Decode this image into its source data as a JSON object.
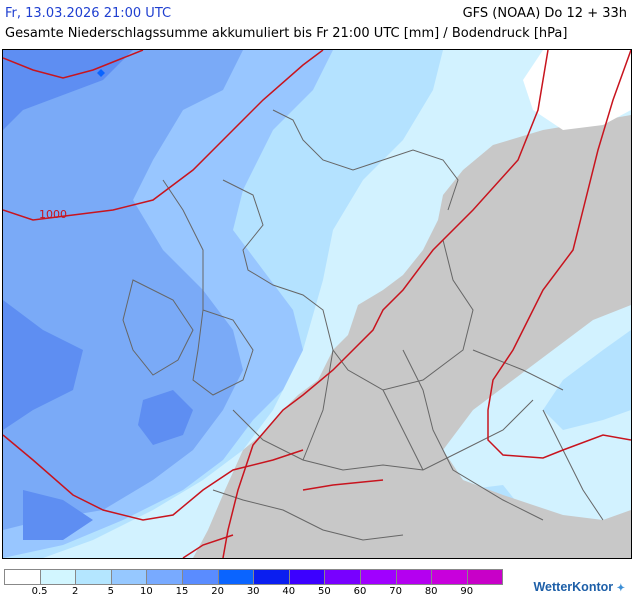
{
  "header": {
    "valid_time": "Fr, 13.03.2026 21:00 UTC",
    "model_run": "GFS (NOAA) Do 12 + 33h",
    "subtitle": "Gesamte Niederschlagssumme akkumuliert bis Fr 21:00 UTC [mm] / Bodendruck [hPa]"
  },
  "map": {
    "isobar_label": "1000",
    "isobar_color": "#c8141e",
    "no_precip_color": "#c8c8c8",
    "border_color": "#555555"
  },
  "legend": {
    "colors": [
      "#ffffff",
      "#d2f6ff",
      "#b4e6ff",
      "#96c8ff",
      "#78aaff",
      "#5a8cff",
      "#0a64ff",
      "#0a1ef0",
      "#3c00ff",
      "#7800ff",
      "#a000ff",
      "#b400f0",
      "#c800dc",
      "#c800c8"
    ],
    "labels": [
      "0.5",
      "2",
      "5",
      "10",
      "15",
      "20",
      "30",
      "40",
      "50",
      "60",
      "70",
      "80",
      "90"
    ]
  },
  "brand": {
    "name": "WetterKontor",
    "mark": "✦"
  }
}
